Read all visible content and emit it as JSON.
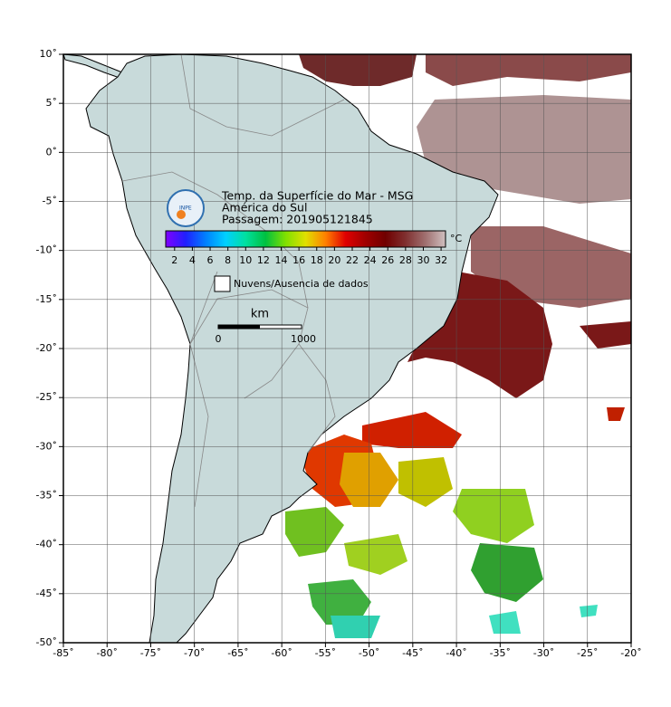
{
  "map": {
    "title_lines": [
      "Temp. da Superfície do Mar - MSG",
      "América do Sul",
      "Passagem: 201905121845"
    ],
    "logo": "INPE",
    "xlim": [
      -85,
      -20
    ],
    "ylim": [
      -50,
      10
    ],
    "xticks": [
      {
        "value": -85,
        "label": "-85˚"
      },
      {
        "value": -80,
        "label": "-80˚"
      },
      {
        "value": -75,
        "label": "-75˚"
      },
      {
        "value": -70,
        "label": "-70˚"
      },
      {
        "value": -65,
        "label": "-65˚"
      },
      {
        "value": -60,
        "label": "-60˚"
      },
      {
        "value": -55,
        "label": "-55˚"
      },
      {
        "value": -50,
        "label": "-50˚"
      },
      {
        "value": -45,
        "label": "-45˚"
      },
      {
        "value": -40,
        "label": "-40˚"
      },
      {
        "value": -35,
        "label": "-35˚"
      },
      {
        "value": -30,
        "label": "-30˚"
      },
      {
        "value": -25,
        "label": "-25˚"
      },
      {
        "value": -20,
        "label": "-20˚"
      }
    ],
    "yticks": [
      {
        "value": 10,
        "label": "10˚"
      },
      {
        "value": 5,
        "label": "5˚"
      },
      {
        "value": 0,
        "label": "0˚"
      },
      {
        "value": -5,
        "label": "-5˚"
      },
      {
        "value": -10,
        "label": "-10˚"
      },
      {
        "value": -15,
        "label": "-15˚"
      },
      {
        "value": -20,
        "label": "-20˚"
      },
      {
        "value": -25,
        "label": "-25˚"
      },
      {
        "value": -30,
        "label": "-30˚"
      },
      {
        "value": -35,
        "label": "-35˚"
      },
      {
        "value": -40,
        "label": "-40˚"
      },
      {
        "value": -45,
        "label": "-45˚"
      },
      {
        "value": -50,
        "label": "-50˚"
      }
    ],
    "grid": true,
    "colorbar": {
      "unit": "°C",
      "lim": [
        1,
        32.5
      ],
      "ticks": [
        2,
        4,
        6,
        8,
        10,
        12,
        14,
        16,
        18,
        20,
        22,
        24,
        26,
        28,
        30,
        32
      ],
      "colors": [
        "#8000ff",
        "#2020ff",
        "#0080ff",
        "#00d0ff",
        "#00e0a0",
        "#00c040",
        "#80e000",
        "#e0e000",
        "#ff8000",
        "#e00000",
        "#a00000",
        "#700000",
        "#803030",
        "#a07070",
        "#d0c0c0"
      ]
    },
    "legend_label": "Nuvens/Ausencia de dados",
    "scalebar": {
      "unit": "km",
      "ticks": [
        "0",
        "1000"
      ]
    }
  }
}
